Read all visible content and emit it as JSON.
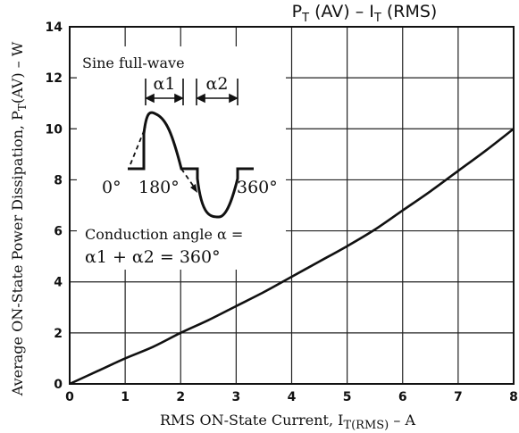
{
  "chart_data": {
    "type": "line",
    "title": "P_T (AV) – I_T (RMS)",
    "title_main": "P",
    "title_sub1": "T",
    "title_mid": " (AV)   –   I",
    "title_sub2": "T",
    "title_end": " (RMS)",
    "xlabel_main": "RMS ON-State Current, I",
    "xlabel_sub": "T(RMS)",
    "xlabel_unit": "  –  A",
    "ylabel_main": "Average ON-State Power Dissipation, P",
    "ylabel_sub": "T",
    "ylabel_end": "(AV)  –  W",
    "xlim": [
      0,
      8
    ],
    "ylim": [
      0,
      14
    ],
    "x_ticks": [
      "0",
      "1",
      "2",
      "3",
      "4",
      "5",
      "6",
      "7",
      "8"
    ],
    "y_ticks": [
      "0",
      "2",
      "4",
      "6",
      "8",
      "10",
      "12",
      "14"
    ],
    "grid": true,
    "series": [
      {
        "x": [
          0,
          0.5,
          1,
          1.5,
          2,
          2.5,
          3,
          3.5,
          4,
          4.5,
          5,
          5.5,
          6,
          6.5,
          7,
          7.5,
          8
        ],
        "y": [
          0,
          0.5,
          1.0,
          1.45,
          2.0,
          2.5,
          3.05,
          3.6,
          4.2,
          4.8,
          5.4,
          6.05,
          6.8,
          7.55,
          8.35,
          9.15,
          10.0
        ]
      }
    ],
    "inset": {
      "waveform_label": "Sine full-wave",
      "alpha1_label": "α1",
      "alpha2_label": "α2",
      "angle_0": "0°",
      "angle_180": "180°",
      "angle_360": "360°",
      "conduction_line1": "Conduction angle  α =",
      "conduction_line2": "α1 + α2 = 360°"
    }
  }
}
